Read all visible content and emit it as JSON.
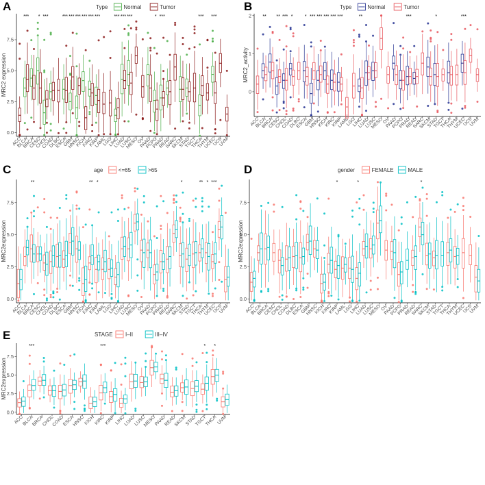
{
  "chart_data": [
    {
      "panel": "A",
      "type": "box",
      "legend_title": "Type",
      "groups": [
        "Normal",
        "Tumor"
      ],
      "colors": [
        "#4daf4a",
        "#8b1a1a"
      ],
      "ylabel": "MRC2 expression",
      "yticks": [
        "0.0",
        "2.5",
        "5.0",
        "7.5"
      ],
      "ylim": [
        -0.3,
        9.6
      ],
      "categories": [
        "ACC",
        "BLCA",
        "BRCA",
        "CESC",
        "CHOL",
        "COAD",
        "DLBC",
        "ESCA",
        "GBM",
        "HNSC",
        "KICH",
        "KIRC",
        "KIRP",
        "LAML",
        "LGG",
        "LIHC",
        "LUAD",
        "LUSC",
        "MESO",
        "OV",
        "PAAD",
        "PCPG",
        "PRAD",
        "READ",
        "SARC",
        "SKCM",
        "STAD",
        "TGCT",
        "THCA",
        "THYM",
        "UCEC",
        "UCS",
        "UVM"
      ],
      "significance": [
        "",
        "***",
        "",
        "*",
        "***",
        "",
        "",
        "***",
        "***",
        "***",
        "***",
        "***",
        "***",
        "",
        "",
        "***",
        "***",
        "***",
        "",
        "",
        "",
        "*",
        "***",
        "",
        "",
        "",
        "",
        "",
        "***",
        "",
        "***",
        "",
        ""
      ],
      "series": [
        {
          "name": "Normal",
          "medians": [
            null,
            3.6,
            4.4,
            5.0,
            1.6,
            3.3,
            null,
            3.5,
            2.5,
            2.0,
            4.2,
            3.5,
            3.0,
            null,
            null,
            1.4,
            4.3,
            4.7,
            null,
            null,
            4.7,
            2.6,
            2.8,
            3.6,
            null,
            3.5,
            3.6,
            null,
            2.2,
            null,
            4.7,
            null,
            null
          ]
        },
        {
          "name": "Tumor",
          "medians": [
            1.4,
            4.3,
            3.6,
            3.6,
            2.7,
            3.4,
            3.4,
            3.4,
            4.5,
            3.8,
            1.2,
            3.2,
            2.6,
            2.3,
            2.4,
            2.0,
            4.2,
            4.0,
            6.2,
            3.7,
            3.6,
            1.9,
            2.8,
            3.3,
            5.3,
            3.5,
            3.3,
            3.6,
            3.8,
            3.2,
            3.2,
            5.6,
            1.5
          ]
        }
      ]
    },
    {
      "panel": "B",
      "type": "box",
      "legend_title": "Type",
      "groups": [
        "Normal",
        "Tumor"
      ],
      "colors": [
        "#283593",
        "#e8585f"
      ],
      "ylabel": "MRC2_activity",
      "yticks": [
        "0",
        "1",
        "2"
      ],
      "ylim": [
        -0.65,
        2.05
      ],
      "categories": [
        "ACC",
        "BLCA",
        "BRCA",
        "CESC",
        "CHOL",
        "COAD",
        "DLBC",
        "ESCA",
        "GBM",
        "HNSC",
        "KICH",
        "KIRC",
        "KIRP",
        "LAML",
        "LGG",
        "LIHC",
        "LUAD",
        "LUSC",
        "MESO",
        "OV",
        "PAAD",
        "PCPG",
        "PRAD",
        "READ",
        "SARC",
        "SKCM",
        "STAD",
        "TGCT",
        "THCA",
        "THYM",
        "UCEC",
        "UCS",
        "UVM"
      ],
      "significance": [
        "",
        "**",
        "",
        "**",
        "***",
        "*",
        "",
        "*",
        "***",
        "***",
        "***",
        "***",
        "***",
        "",
        "",
        "**",
        "",
        "",
        "",
        "",
        "",
        "",
        "***",
        "",
        "",
        "",
        "*",
        "",
        "",
        "",
        "***",
        "",
        ""
      ],
      "series": [
        {
          "name": "Normal",
          "medians": [
            null,
            0.55,
            0.78,
            0.15,
            0.3,
            0.6,
            null,
            0.55,
            -0.05,
            0.3,
            0.55,
            0.3,
            0.25,
            null,
            null,
            0.15,
            0.5,
            0.55,
            null,
            null,
            0.75,
            0.3,
            0.4,
            0.35,
            null,
            0.65,
            0.45,
            null,
            0.5,
            null,
            0.75,
            null,
            null
          ]
        },
        {
          "name": "Tumor",
          "medians": [
            0.2,
            0.45,
            0.55,
            0.4,
            0.3,
            0.4,
            0.55,
            0.4,
            0.55,
            0.45,
            0.2,
            0.25,
            0.2,
            -0.4,
            0.15,
            0.1,
            0.5,
            0.55,
            1.4,
            0.45,
            0.45,
            0.3,
            0.4,
            0.4,
            0.75,
            0.4,
            0.4,
            0.45,
            0.45,
            0.45,
            0.5,
            0.95,
            0.45
          ]
        }
      ]
    },
    {
      "panel": "C",
      "type": "box",
      "legend_title": "age",
      "groups": [
        "<=65",
        ">65"
      ],
      "colors": [
        "#f8766d",
        "#00bfc4"
      ],
      "ylabel": "MRC2expression",
      "yticks": [
        "0.0",
        "2.5",
        "5.0",
        "7.5"
      ],
      "ylim": [
        -0.3,
        9.3
      ],
      "categories": [
        "ACC",
        "BLCA",
        "BRCA",
        "CESC",
        "CHOL",
        "COAD",
        "DLBC",
        "ESCA",
        "GBM",
        "HNSC",
        "KICH",
        "KIRC",
        "KIRP",
        "LAML",
        "LGG",
        "LIHC",
        "LUAD",
        "LUSC",
        "MESO",
        "OV",
        "PAAD",
        "PCPG",
        "PRAD",
        "READ",
        "SARC",
        "SKCM",
        "STAD",
        "TGCT",
        "THCA",
        "THYM",
        "UCEC",
        "UCS",
        "UVM"
      ],
      "significance": [
        "",
        "",
        "**",
        "",
        "",
        "",
        "",
        "",
        "",
        "",
        "",
        "**",
        "*",
        "",
        "",
        "",
        "",
        "",
        "",
        "",
        "",
        "",
        "",
        "",
        "",
        "*",
        "",
        "",
        "**",
        "*",
        "***",
        "",
        ""
      ],
      "series": [
        {
          "name": "<=65",
          "medians": [
            1.2,
            3.3,
            3.9,
            3.5,
            2.8,
            2.9,
            3.3,
            3.1,
            4.4,
            3.9,
            1.2,
            2.8,
            2.3,
            2.3,
            2.3,
            1.7,
            3.9,
            3.9,
            5.9,
            3.8,
            3.8,
            1.9,
            2.9,
            3.1,
            5.1,
            3.4,
            3.1,
            3.5,
            3.6,
            3.6,
            2.9,
            5.4,
            1.5
          ]
        },
        {
          "name": ">65",
          "medians": [
            1.5,
            4.0,
            3.5,
            3.5,
            2.7,
            3.4,
            3.4,
            3.4,
            4.5,
            3.8,
            1.5,
            3.4,
            2.9,
            2.9,
            2.4,
            1.9,
            4.1,
            4.2,
            6.0,
            3.6,
            3.6,
            2.1,
            2.9,
            3.3,
            5.4,
            3.5,
            3.4,
            3.6,
            3.9,
            3.3,
            3.5,
            5.6,
            1.7
          ]
        }
      ]
    },
    {
      "panel": "D",
      "type": "box",
      "legend_title": "gender",
      "groups": [
        "FEMALE",
        "MALE"
      ],
      "colors": [
        "#f8766d",
        "#00bfc4"
      ],
      "ylabel": "MRC2expression",
      "yticks": [
        "0.0",
        "2.5",
        "5.0",
        "7.5"
      ],
      "ylim": [
        -0.3,
        9.3
      ],
      "categories": [
        "ACC",
        "BLCA",
        "BRCA",
        "CESC",
        "CHOL",
        "COAD",
        "DLBC",
        "ESCA",
        "GBM",
        "HNSC",
        "KICH",
        "KIRC",
        "KIRP",
        "LAML",
        "LGG",
        "LIHC",
        "LUAD",
        "LUSC",
        "MESO",
        "OV",
        "PAAD",
        "PCPG",
        "PRAD",
        "READ",
        "SARC",
        "SKCM",
        "STAD",
        "TGCT",
        "THCA",
        "THYM",
        "UCEC",
        "UCS",
        "UVM"
      ],
      "significance": [
        "",
        "",
        "",
        "",
        "",
        "",
        "",
        "",
        "",
        "",
        "",
        "",
        "*",
        "",
        "",
        "*",
        "",
        "",
        "",
        "",
        "",
        "",
        "",
        "",
        "*",
        "",
        "",
        "",
        "",
        "",
        "",
        "",
        ""
      ],
      "series": [
        {
          "name": "FEMALE",
          "medians": [
            1.3,
            3.6,
            3.9,
            3.6,
            3.0,
            3.1,
            3.3,
            3.2,
            4.4,
            3.9,
            1.2,
            2.7,
            2.3,
            2.4,
            2.4,
            1.6,
            3.9,
            3.9,
            5.9,
            3.8,
            3.7,
            1.9,
            null,
            3.2,
            5.6,
            3.4,
            3.2,
            null,
            3.6,
            3.3,
            3.6,
            3.4,
            1.7
          ]
        },
        {
          "name": "MALE",
          "medians": [
            1.6,
            3.9,
            4.0,
            null,
            2.6,
            3.2,
            3.4,
            3.3,
            4.5,
            3.8,
            1.3,
            3.0,
            2.6,
            2.7,
            2.3,
            2.0,
            4.1,
            4.2,
            6.1,
            null,
            3.6,
            2.1,
            3.0,
            3.3,
            5.0,
            3.5,
            3.4,
            3.4,
            3.8,
            3.4,
            null,
            null,
            1.4
          ]
        }
      ]
    },
    {
      "panel": "E",
      "type": "box",
      "legend_title": "STAGE",
      "groups": [
        "I–II",
        "III–IV"
      ],
      "colors": [
        "#f8766d",
        "#00bfc4"
      ],
      "ylabel": "MRC2expression",
      "yticks": [
        "0.0",
        "2.5",
        "5.0",
        "7.5"
      ],
      "ylim": [
        -0.3,
        9.3
      ],
      "categories": [
        "ACC",
        "BLCA",
        "BRCA",
        "CHOL",
        "COAD",
        "ESCA",
        "HNSC",
        "KICH",
        "KIRC",
        "KIRP",
        "LIHC",
        "LUAD",
        "LUSC",
        "MESO",
        "PAAD",
        "READ",
        "SKCM",
        "STAD",
        "TGCT",
        "THCA",
        "UVM"
      ],
      "significance": [
        "",
        "***",
        "",
        "",
        "",
        "",
        "",
        "",
        "***",
        "",
        "",
        "",
        "",
        "",
        "",
        "",
        "",
        "",
        "*",
        "*",
        ""
      ],
      "series": [
        {
          "name": "I–II",
          "medians": [
            1.3,
            2.9,
            4.2,
            2.9,
            2.8,
            3.6,
            4.1,
            1.2,
            2.6,
            2.1,
            1.2,
            4.1,
            4.0,
            6.0,
            4.5,
            2.7,
            3.3,
            3.2,
            3.1,
            4.8,
            1.4
          ]
        },
        {
          "name": "III–IV",
          "medians": [
            1.5,
            3.6,
            4.3,
            2.9,
            3.0,
            3.7,
            4.2,
            1.4,
            3.3,
            2.4,
            1.8,
            4.2,
            4.1,
            6.1,
            4.3,
            2.9,
            3.4,
            3.5,
            3.9,
            5.0,
            1.7
          ]
        }
      ]
    }
  ]
}
